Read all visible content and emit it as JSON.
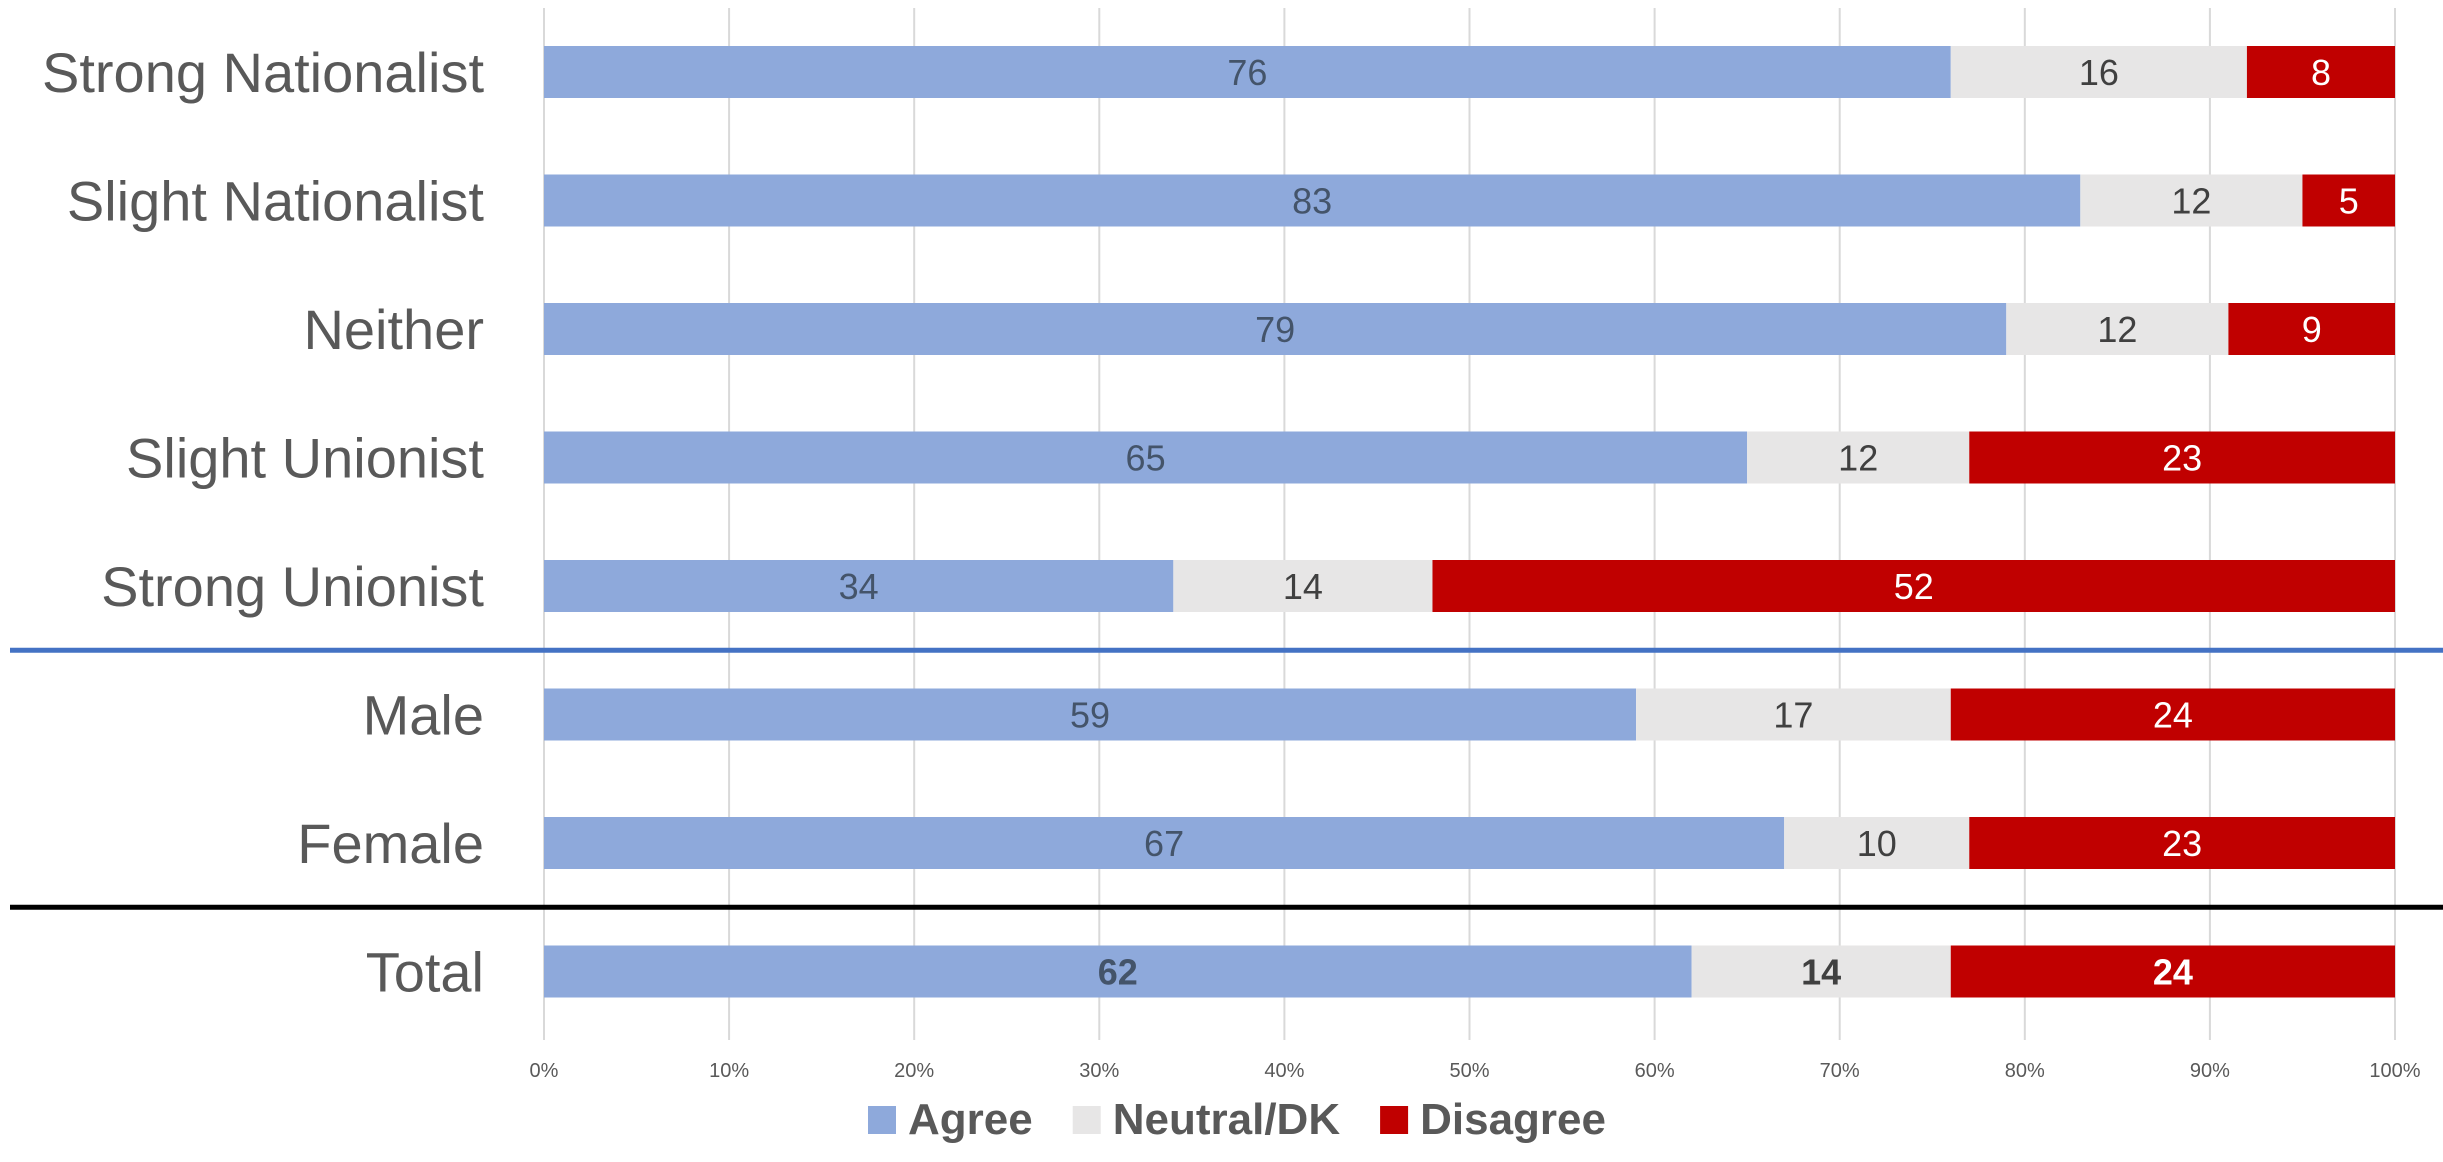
{
  "chart_data": {
    "type": "bar",
    "orientation": "horizontal",
    "stacked": true,
    "percent_stacked": true,
    "categories": [
      "Strong Nationalist",
      "Slight Nationalist",
      "Neither",
      "Slight Unionist",
      "Strong Unionist",
      "Male",
      "Female",
      "Total"
    ],
    "series": [
      {
        "name": "Agree",
        "color": "#8EA9DB",
        "label_color": "#44546A",
        "values": [
          76,
          83,
          79,
          65,
          34,
          59,
          67,
          62
        ]
      },
      {
        "name": "Neutral/DK",
        "color": "#E7E6E6",
        "label_color": "#404040",
        "values": [
          16,
          12,
          12,
          12,
          14,
          17,
          10,
          14
        ]
      },
      {
        "name": "Disagree",
        "color": "#C00000",
        "label_color": "#FFFFFF",
        "values": [
          8,
          5,
          9,
          23,
          52,
          24,
          23,
          24
        ]
      }
    ],
    "xlim": [
      0,
      100
    ],
    "x_ticks": [
      "0%",
      "10%",
      "20%",
      "30%",
      "40%",
      "50%",
      "60%",
      "70%",
      "80%",
      "90%",
      "100%"
    ],
    "grid": "vertical",
    "legend_position": "bottom",
    "bold_category": "Total",
    "dividers": [
      {
        "after_category": "Strong Unionist",
        "color": "#4472C4"
      },
      {
        "after_category": "Female",
        "color": "#000000"
      }
    ],
    "title": "",
    "xlabel": "",
    "ylabel": ""
  }
}
